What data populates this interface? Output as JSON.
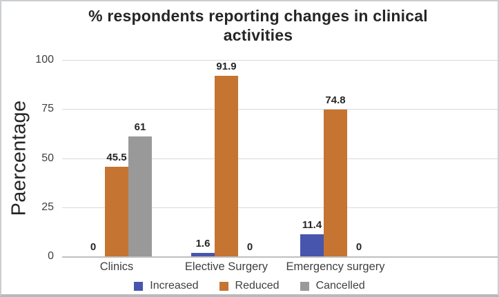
{
  "chart": {
    "title": "% respondents reporting changes in clinical activities",
    "y_axis_label": "Paercentage"
  },
  "chart_data": {
    "type": "bar",
    "title": "% respondents reporting changes in clinical activities",
    "categories": [
      "Clinics",
      "Elective Surgery",
      "Emergency surgery"
    ],
    "series": [
      {
        "name": "Increased",
        "color": "#4755ad",
        "values": [
          0,
          1.6,
          11.4
        ]
      },
      {
        "name": "Reduced",
        "color": "#c67431",
        "values": [
          45.5,
          91.9,
          74.8
        ]
      },
      {
        "name": "Cancelled",
        "color": "#999999",
        "values": [
          61,
          0,
          0
        ]
      }
    ],
    "xlabel": "",
    "ylabel": "Paercentage",
    "ylim": [
      0,
      100
    ],
    "yticks": [
      0,
      25,
      50,
      75,
      100
    ],
    "grid": true,
    "legend_position": "bottom",
    "data_labels": true
  }
}
